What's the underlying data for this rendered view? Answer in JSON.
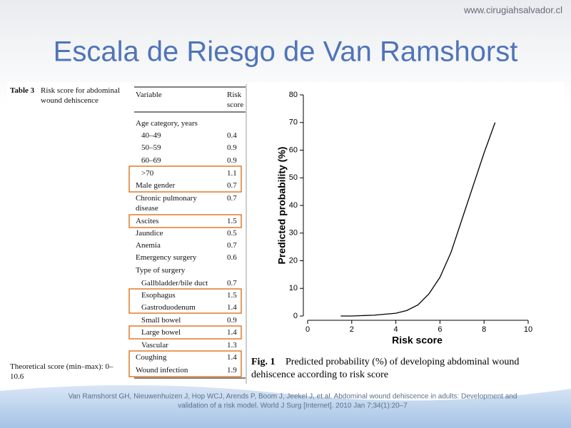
{
  "header": {
    "url": "www.cirugiahsalvador.cl",
    "title": "Escala de Riesgo de Van Ramshorst"
  },
  "table": {
    "label": "Table 3",
    "title": "Risk score for abdominal wound dehiscence",
    "columns": [
      "Variable",
      "Risk score"
    ],
    "rows": [
      {
        "label": "Age category, years"
      },
      {
        "label": "40–49",
        "score": "0.4"
      },
      {
        "label": "50–59",
        "score": "0.9"
      },
      {
        "label": "60–69",
        "score": "0.9"
      },
      {
        "label": ">70",
        "score": "1.1"
      },
      {
        "label": "Male gender",
        "score": "0.7"
      },
      {
        "label": "Chronic pulmonary disease",
        "score": "0.7"
      },
      {
        "label": "Ascites",
        "score": "1.5"
      },
      {
        "label": "Jaundice",
        "score": "0.5"
      },
      {
        "label": "Anemia",
        "score": "0.7"
      },
      {
        "label": "Emergency surgery",
        "score": "0.6"
      },
      {
        "label": "Type of surgery"
      },
      {
        "label": "Gallbladder/bile duct",
        "score": "0.7"
      },
      {
        "label": "Esophagus",
        "score": "1.5"
      },
      {
        "label": "Gastroduodenum",
        "score": "1.4"
      },
      {
        "label": "Small bowel",
        "score": "0.9"
      },
      {
        "label": "Large bowel",
        "score": "1.4"
      },
      {
        "label": "Vascular",
        "score": "1.3"
      },
      {
        "label": "Coughing",
        "score": "1.4"
      },
      {
        "label": "Wound infection",
        "score": "1.9"
      }
    ],
    "footnote": "Theoretical score (min–max): 0–10.6"
  },
  "chart_data": {
    "type": "line",
    "x_label": "Risk score",
    "y_label": "Predicted probability (%)",
    "x": [
      1.5,
      2,
      3,
      4,
      4.5,
      5,
      5.5,
      6,
      6.5,
      7,
      7.5,
      8,
      8.5
    ],
    "values": [
      0,
      0,
      0.3,
      1,
      2,
      4,
      8,
      14,
      23,
      35,
      47,
      59,
      70
    ],
    "color": "#000000",
    "xlim": [
      0,
      10
    ],
    "xticks": [
      0,
      2,
      4,
      6,
      8,
      10
    ],
    "ylim": [
      0,
      80
    ],
    "yticks": [
      0,
      10,
      20,
      30,
      40,
      50,
      60,
      70,
      80
    ],
    "grid": false
  },
  "caption": {
    "label": "Fig. 1",
    "lines": [
      "Predicted probability (%) of developing abdominal wound",
      "dehiscence according to risk score"
    ]
  },
  "citation": [
    "Van Ramshorst GH, Nieuwenhuizen J, Hop WCJ, Arends P, Boom J, Jeekel J, et al. Abdominal wound dehiscence in adults: Development and",
    "validation of a risk model. World J Surg [Internet]. 2010 Jan 7;34(1):20–7"
  ]
}
